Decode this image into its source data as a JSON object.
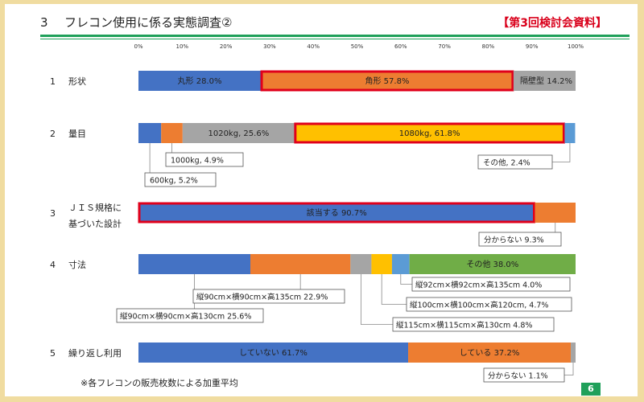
{
  "header": {
    "number": "3",
    "title": "フレコン使用に係る実態調査②",
    "tag": "【第3回検討会資料】",
    "footnote": "※各フレコンの販売枚数による加重平均",
    "page": "6"
  },
  "colors": {
    "blue": "#4472c4",
    "orange": "#ed7d31",
    "gray": "#a5a5a5",
    "yellow": "#ffc000",
    "lightblue": "#5b9bd5",
    "green": "#70ad47",
    "highlight": "#e0001b",
    "rule": "#1fa05a"
  },
  "chart_data": {
    "type": "bar",
    "orientation": "horizontal",
    "stacked": true,
    "xlim": [
      0,
      100
    ],
    "ticks": [
      "0%",
      "10%",
      "20%",
      "30%",
      "40%",
      "50%",
      "60%",
      "70%",
      "80%",
      "90%",
      "100%"
    ],
    "rows": [
      {
        "num": "1",
        "label": [
          "形状"
        ],
        "segments": [
          {
            "value": 28.0,
            "color": "blue",
            "label": "丸形 28.0%",
            "label_pos": "inside"
          },
          {
            "value": 57.8,
            "color": "orange",
            "label": "角形 57.8%",
            "label_pos": "inside",
            "highlight": true
          },
          {
            "value": 14.2,
            "color": "gray",
            "label": "隔壁型 14.2%",
            "label_pos": "inside"
          }
        ]
      },
      {
        "num": "2",
        "label": [
          "量目"
        ],
        "segments": [
          {
            "value": 5.2,
            "color": "blue",
            "label": "600kg, 5.2%",
            "label_pos": "callout",
            "callout": "left-low"
          },
          {
            "value": 4.9,
            "color": "orange",
            "label": "1000kg, 4.9%",
            "label_pos": "callout",
            "callout": "left-high"
          },
          {
            "value": 25.6,
            "color": "gray",
            "label": "1020kg, 25.6%",
            "label_pos": "inside"
          },
          {
            "value": 61.8,
            "color": "yellow",
            "label": "1080kg, 61.8%",
            "label_pos": "inside",
            "highlight": true
          },
          {
            "value": 2.4,
            "color": "lightblue",
            "label": "その他, 2.4%",
            "label_pos": "callout",
            "callout": "right"
          }
        ]
      },
      {
        "num": "3",
        "label": [
          "ＪＩＳ規格に",
          "基づいた設計"
        ],
        "segments": [
          {
            "value": 90.7,
            "color": "blue",
            "label": "該当する 90.7%",
            "label_pos": "inside",
            "highlight": true
          },
          {
            "value": 9.3,
            "color": "orange",
            "label": "分からない 9.3%",
            "label_pos": "callout",
            "callout": "right"
          }
        ]
      },
      {
        "num": "4",
        "label": [
          "寸法"
        ],
        "segments": [
          {
            "value": 25.6,
            "color": "blue",
            "label": "縦90cm×横90cm×高130cm 25.6%",
            "label_pos": "callout",
            "callout": "left-low"
          },
          {
            "value": 22.9,
            "color": "orange",
            "label": "縦90cm×横90cm×高135cm 22.9%",
            "label_pos": "callout",
            "callout": "left-high"
          },
          {
            "value": 4.8,
            "color": "gray",
            "label": "縦115cm×横115cm×高130cm 4.8%",
            "label_pos": "callout",
            "callout": "mid-3"
          },
          {
            "value": 4.7,
            "color": "yellow",
            "label": "縦100cm×横100cm×高120cm, 4.7%",
            "label_pos": "callout",
            "callout": "mid-2"
          },
          {
            "value": 4.0,
            "color": "lightblue",
            "label": "縦92cm×横92cm×高135cm 4.0%",
            "label_pos": "callout",
            "callout": "mid-1"
          },
          {
            "value": 38.0,
            "color": "green",
            "label": "その他 38.0%",
            "label_pos": "inside"
          }
        ]
      },
      {
        "num": "5",
        "label": [
          "繰り返し利用"
        ],
        "segments": [
          {
            "value": 61.7,
            "color": "blue",
            "label": "していない 61.7%",
            "label_pos": "inside"
          },
          {
            "value": 37.2,
            "color": "orange",
            "label": "している 37.2%",
            "label_pos": "inside"
          },
          {
            "value": 1.1,
            "color": "gray",
            "label": "分からない 1.1%",
            "label_pos": "callout",
            "callout": "right"
          }
        ]
      }
    ]
  }
}
